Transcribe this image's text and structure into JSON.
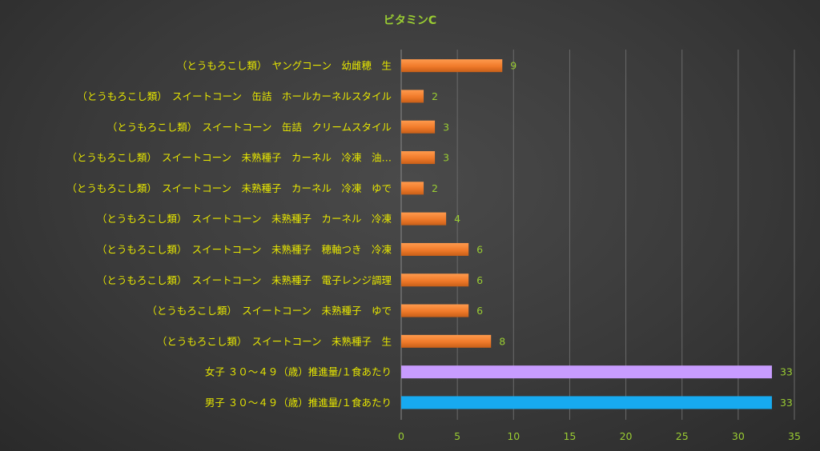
{
  "chart_data": {
    "type": "bar",
    "orientation": "horizontal",
    "title": "ビタミンC",
    "categories": [
      "（とうもろこし類）　ヤングコーン　幼雌穂　生",
      "（とうもろこし類）　スイートコーン　缶詰　ホールカーネルスタイル",
      "（とうもろこし類）　スイートコーン　缶詰　クリームスタイル",
      "（とうもろこし類）　スイートコーン　未熟種子　カーネル　冷凍　油…",
      "（とうもろこし類）　スイートコーン　未熟種子　カーネル　冷凍　ゆで",
      "（とうもろこし類）　スイートコーン　未熟種子　カーネル　冷凍",
      "（とうもろこし類）　スイートコーン　未熟種子　穂軸つき　冷凍",
      "（とうもろこし類）　スイートコーン　未熟種子　電子レンジ調理",
      "（とうもろこし類）　スイートコーン　未熟種子　ゆで",
      "（とうもろこし類）　スイートコーン　未熟種子　生",
      "女子 ３０～４９（歳）推進量/１食あたり",
      "男子 ３０～４９（歳）推進量/１食あたり"
    ],
    "values": [
      9,
      2,
      3,
      3,
      2,
      4,
      6,
      6,
      6,
      8,
      33,
      33
    ],
    "value_labels": [
      "9",
      "2",
      "3",
      "3",
      "2",
      "4",
      "6",
      "6",
      "6",
      "8",
      "33",
      "33"
    ],
    "bar_colors": [
      "#f07a2a",
      "#f07a2a",
      "#f07a2a",
      "#f07a2a",
      "#f07a2a",
      "#f07a2a",
      "#f07a2a",
      "#f07a2a",
      "#f07a2a",
      "#f07a2a",
      "#c89cff",
      "#17aaf0"
    ],
    "xlim": [
      0,
      35
    ],
    "xticks": [
      "0",
      "5",
      "10",
      "15",
      "20",
      "25",
      "30",
      "35"
    ],
    "grid": true,
    "legend": "none",
    "xlabel": "",
    "ylabel": ""
  },
  "colors": {
    "background": "#3a3a3a",
    "title": "#9acd32",
    "category_text": "#e6e600",
    "value_text": "#9acd32",
    "food_bar": "#f07a2a",
    "female_bar": "#c89cff",
    "male_bar": "#17aaf0"
  }
}
